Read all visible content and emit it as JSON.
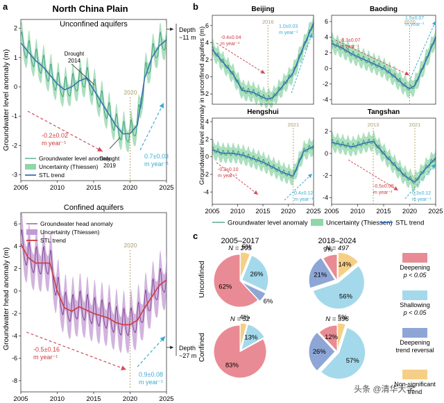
{
  "figure": {
    "panel_a_label": "a",
    "panel_b_label": "b",
    "panel_c_label": "c",
    "panel_a_title": "North China Plain",
    "watermark": "头条 @清华大学"
  },
  "colors": {
    "green": "#3a9c7c",
    "green_band": "#8fd6a8",
    "blue": "#3a6fb4",
    "purple": "#7a3c8c",
    "purple_band": "#c39ad3",
    "red": "#cf3a3a",
    "red_arrow": "#d24a5a",
    "cyan_arrow": "#3aaad4",
    "year_label": "#a89a6a",
    "pie_deepening": "#e98b94",
    "pie_shallowing": "#a4d9eb",
    "pie_reversal": "#8ea6d6",
    "pie_other": "#f6cf86"
  },
  "chart_data": [
    {
      "id": "a_unconfined",
      "type": "line",
      "title": "Unconfined aquifers",
      "ylabel": "Groundwater level anomaly (m)",
      "xlim": [
        2005,
        2025
      ],
      "ylim": [
        -3.2,
        2.3
      ],
      "xticks": [
        "2005",
        "2010",
        "2015",
        "2020",
        "2025"
      ],
      "yticks": [
        "2",
        "1",
        "0",
        "-1",
        "-2",
        "-3"
      ],
      "series": [
        {
          "name": "Groundwater level anomaly",
          "x": [
            2005,
            2006,
            2007,
            2008,
            2009,
            2010,
            2011,
            2012,
            2013,
            2014,
            2015,
            2016,
            2017,
            2018,
            2019,
            2020,
            2021,
            2022,
            2023,
            2024,
            2025
          ],
          "values": [
            1.5,
            1.2,
            0.9,
            0.7,
            0.4,
            0.1,
            -0.1,
            0.0,
            0.2,
            0.3,
            -0.1,
            -0.5,
            -0.9,
            -1.3,
            -1.6,
            -1.6,
            -1.3,
            0.3,
            1.0,
            1.4,
            1.6
          ]
        },
        {
          "name": "Uncertainty (Thiessen)",
          "x": [
            2005,
            2010,
            2015,
            2020,
            2025
          ],
          "values": [
            0.5,
            0.5,
            0.5,
            0.6,
            0.6
          ]
        },
        {
          "name": "STL trend",
          "x": [
            2005,
            2006,
            2007,
            2008,
            2009,
            2010,
            2011,
            2012,
            2013,
            2014,
            2015,
            2016,
            2017,
            2018,
            2019,
            2020,
            2021,
            2022,
            2023,
            2024,
            2025
          ],
          "values": [
            1.5,
            1.2,
            0.9,
            0.7,
            0.4,
            0.1,
            -0.1,
            0.0,
            0.2,
            0.3,
            -0.1,
            -0.5,
            -0.9,
            -1.3,
            -1.6,
            -1.6,
            -1.3,
            0.3,
            1.0,
            1.4,
            1.6
          ]
        }
      ],
      "annotations": {
        "drought1": "Drought\n2014",
        "drought2": "Drought\n2019",
        "year": "2020",
        "rate_down": "-0.2±0.02\nm year⁻¹",
        "rate_up": "0.7±0.03\nm year⁻¹",
        "depth": "Depth\n~11 m"
      },
      "legend": [
        "Groundwater level anomaly",
        "Uncertainty (Thiessen)",
        "STL trend"
      ]
    },
    {
      "id": "a_confined",
      "type": "line",
      "title": "Confined aquifers",
      "ylabel": "Groundwater head anomaly (m)",
      "xlim": [
        2005,
        2025
      ],
      "ylim": [
        -9,
        7
      ],
      "xticks": [
        "2005",
        "2010",
        "2015",
        "2020",
        "2025"
      ],
      "yticks": [
        "6",
        "4",
        "2",
        "0",
        "-2",
        "-4",
        "-6",
        "-8"
      ],
      "series": [
        {
          "name": "Groundwater head anomaly",
          "x": [
            2005,
            2006,
            2007,
            2008,
            2009,
            2010,
            2011,
            2012,
            2013,
            2014,
            2015,
            2016,
            2017,
            2018,
            2019,
            2020,
            2021,
            2022,
            2023,
            2024,
            2025
          ],
          "values": [
            4.2,
            3.0,
            2.5,
            2.5,
            2.5,
            0.0,
            -1.5,
            -1.8,
            -1.4,
            -1.7,
            -2.0,
            -2.2,
            -2.4,
            -2.8,
            -3.0,
            -3.0,
            -2.6,
            -1.5,
            -0.5,
            0.5,
            1.0
          ]
        },
        {
          "name": "Uncertainty (Thiessen)",
          "x": [
            2005,
            2010,
            2015,
            2020,
            2025
          ],
          "values": [
            2.0,
            2.5,
            2.5,
            2.5,
            2.5
          ]
        },
        {
          "name": "STL trend",
          "x": [
            2005,
            2006,
            2007,
            2008,
            2009,
            2010,
            2011,
            2012,
            2013,
            2014,
            2015,
            2016,
            2017,
            2018,
            2019,
            2020,
            2021,
            2022,
            2023,
            2024,
            2025
          ],
          "values": [
            4.2,
            3.0,
            2.5,
            2.5,
            2.5,
            0.0,
            -1.5,
            -1.8,
            -1.4,
            -1.7,
            -2.0,
            -2.2,
            -2.4,
            -2.8,
            -3.0,
            -3.0,
            -2.6,
            -1.5,
            -0.5,
            0.5,
            1.0
          ]
        }
      ],
      "annotations": {
        "year": "2020",
        "rate_down": "-0.5±0.16\nm year⁻¹",
        "rate_up": "0.9±0.08\nm year⁻¹",
        "depth": "Depth\n~27 m"
      },
      "legend": [
        "Groundwater head anomaly",
        "Uncertainty (Thiessen)",
        "STL trend"
      ]
    },
    {
      "id": "b_beijing",
      "type": "line",
      "title": "Beijing",
      "xlim": [
        2005,
        2025
      ],
      "ylim": [
        -3.2,
        7.2
      ],
      "yticks": [
        "6",
        "4",
        "2",
        "0",
        "-2"
      ],
      "series": [
        {
          "name": "STL trend",
          "x": [
            2005,
            2007,
            2009,
            2011,
            2013,
            2015,
            2016,
            2017,
            2019,
            2021,
            2023,
            2025
          ],
          "values": [
            3.2,
            1.8,
            0.4,
            -1.6,
            -1.8,
            -2.4,
            -2.6,
            -2.4,
            -1.0,
            0.5,
            3.5,
            6.3
          ]
        }
      ],
      "annotations": {
        "year": "2016",
        "rate_down": "-0.4±0.04\nm year⁻¹",
        "rate_up": "1.0±0.03\nm year⁻¹"
      }
    },
    {
      "id": "b_baoding",
      "type": "line",
      "title": "Baoding",
      "xlim": [
        2005,
        2025
      ],
      "ylim": [
        -4.6,
        6.8
      ],
      "yticks": [
        "6",
        "4",
        "2",
        "0",
        "-2",
        "-4"
      ],
      "series": [
        {
          "name": "STL trend",
          "x": [
            2005,
            2007,
            2009,
            2011,
            2013,
            2015,
            2017,
            2019,
            2020,
            2021,
            2023,
            2025
          ],
          "values": [
            3.2,
            2.6,
            1.8,
            1.2,
            0.6,
            0.0,
            -1.0,
            -2.2,
            -2.6,
            -2.2,
            0.8,
            4.0
          ]
        }
      ],
      "annotations": {
        "year": "2020",
        "rate_down": "-0.3±0.07\nm year⁻¹",
        "rate_up": "1.5±0.07\nm year⁻¹"
      }
    },
    {
      "id": "b_hengshui",
      "type": "line",
      "title": "Hengshui",
      "xlim": [
        2005,
        2025
      ],
      "ylim": [
        -5.4,
        4.4
      ],
      "xticks": [
        "2005",
        "2010",
        "2015",
        "2020",
        "2025"
      ],
      "yticks": [
        "4",
        "2",
        "0",
        "-2",
        "-4"
      ],
      "series": [
        {
          "name": "STL trend",
          "x": [
            2005,
            2007,
            2009,
            2011,
            2013,
            2015,
            2017,
            2019,
            2021,
            2023,
            2025
          ],
          "values": [
            0.8,
            0.4,
            0.4,
            0.2,
            -0.2,
            -0.6,
            -1.2,
            -1.8,
            -2.2,
            0.6,
            1.2
          ]
        }
      ],
      "annotations": {
        "year": "2021",
        "rate_down": "-0.2±0.10\nm year⁻¹",
        "rate_up": "0.4±0.12\nm year⁻¹"
      }
    },
    {
      "id": "b_tangshan",
      "type": "line",
      "title": "Tangshan",
      "xlim": [
        2005,
        2025
      ],
      "ylim": [
        -4.6,
        3.2
      ],
      "xticks": [
        "2005",
        "2010",
        "2015",
        "2020",
        "2025"
      ],
      "yticks": [
        "2",
        "0",
        "-2",
        "-4"
      ],
      "series": [
        {
          "name": "STL trend",
          "x": [
            2005,
            2007,
            2009,
            2011,
            2013,
            2015,
            2017,
            2019,
            2021,
            2023,
            2025
          ],
          "values": [
            1.0,
            0.8,
            0.6,
            0.9,
            1.1,
            0.0,
            -1.0,
            -2.0,
            -2.6,
            -1.4,
            -0.4
          ]
        }
      ],
      "annotations": {
        "year1": "2013",
        "year2": "2021",
        "rate_down": "-0.5±0.08\nm year⁻¹",
        "rate_up": "0.3±0.12\nm year⁻¹"
      }
    },
    {
      "id": "b_common",
      "ylabel": "Groundwater level anomaly in unconfined aquifers (m)",
      "legend": [
        "Groundwater level anomaly",
        "Uncertainty (Thiessen)",
        "STL trend"
      ]
    },
    {
      "id": "c_pies",
      "type": "pie",
      "column_titles": [
        "2005–2017",
        "2018–2024"
      ],
      "row_labels": [
        "Unconfined",
        "Confined"
      ],
      "categories": [
        "Deepening p < 0.05",
        "Shallowing p < 0.05",
        "Deepening trend reversal",
        "Non-significant trend"
      ],
      "legend_text": {
        "deepening": [
          "Deepening",
          "p < 0.05"
        ],
        "shallowing": [
          "Shallowing",
          "p < 0.05"
        ],
        "reversal": [
          "Deepening",
          "trend reversal"
        ],
        "other": [
          "Non-significant",
          "trend"
        ]
      },
      "pies": [
        {
          "n_label": "N = 295",
          "values": [
            62,
            26,
            6,
            6
          ],
          "labels": [
            "62%",
            "26%",
            "6%",
            "6%"
          ]
        },
        {
          "n_label": "N = 497",
          "values": [
            9,
            56,
            21,
            14
          ],
          "labels": [
            "9%",
            "56%",
            "21%",
            "14%"
          ]
        },
        {
          "n_label": "N = 52",
          "values": [
            83,
            13,
            0,
            4
          ],
          "labels": [
            "83%",
            "13%",
            "",
            "4%"
          ]
        },
        {
          "n_label": "N = 396",
          "values": [
            12,
            57,
            26,
            5
          ],
          "labels": [
            "12%",
            "57%",
            "26%",
            "5%"
          ]
        }
      ]
    }
  ]
}
